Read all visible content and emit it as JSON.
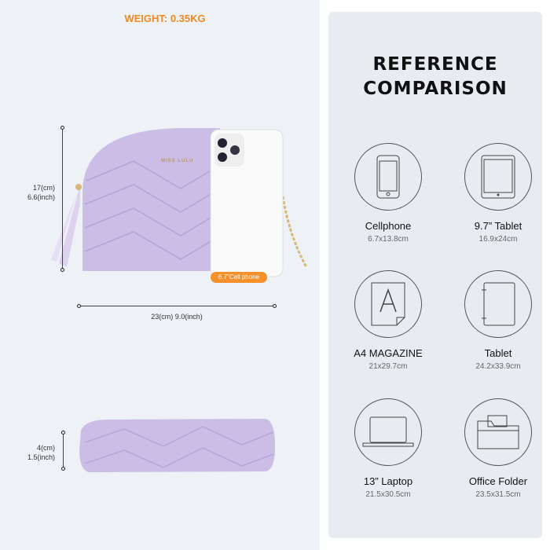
{
  "weight_label": "WEIGHT: 0.35KG",
  "brand_logo": "MISS LULU",
  "front_view": {
    "height_cm": "17(cm)",
    "height_inch": "6.6(inch)",
    "width_label": "23(cm) 9.0(inch)",
    "phone_tag": "6.7\"Cell phone"
  },
  "side_view": {
    "depth_cm": "4(cm)",
    "depth_inch": "1.5(inch)"
  },
  "colors": {
    "bag": "#cbbde6",
    "accent": "#f08a24",
    "panel": "#e8ecf1"
  },
  "reference": {
    "title_line1": "REFERENCE",
    "title_line2": "COMPARISON",
    "items": [
      {
        "label": "Cellphone",
        "size": "6.7x13.8cm",
        "icon": "cellphone-icon"
      },
      {
        "label": "9.7” Tablet",
        "size": "16.9x24cm",
        "icon": "tablet-icon"
      },
      {
        "label": "A4 MAGAZINE",
        "size": "21x29.7cm",
        "icon": "magazine-icon"
      },
      {
        "label": "Tablet",
        "size": "24.2x33.9cm",
        "icon": "notepad-icon"
      },
      {
        "label": "13” Laptop",
        "size": "21.5x30.5cm",
        "icon": "laptop-icon"
      },
      {
        "label": "Office Folder",
        "size": "23.5x31.5cm",
        "icon": "folder-icon"
      }
    ]
  }
}
